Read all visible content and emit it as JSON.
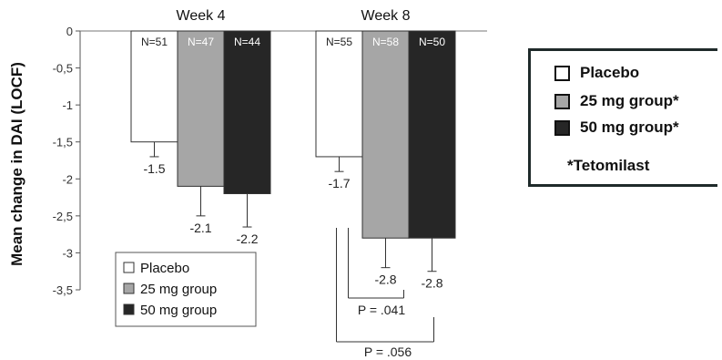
{
  "chart_data": {
    "type": "bar",
    "ylabel": "Mean change in DAI (LOCF)",
    "ylim": [
      -3.5,
      0
    ],
    "yticks": [
      "0",
      "-0,5",
      "-1",
      "-1,5",
      "-2",
      "-2,5",
      "-3",
      "-3,5"
    ],
    "ytick_values": [
      0,
      -0.5,
      -1,
      -1.5,
      -2,
      -2.5,
      -3,
      -3.5
    ],
    "groups": [
      "Week 4",
      "Week 8"
    ],
    "series": [
      {
        "name": "Placebo",
        "color": "#ffffff",
        "values": [
          -1.5,
          -1.7
        ],
        "value_labels": [
          "-1.5",
          "-1.7"
        ],
        "errors": [
          0.2,
          0.2
        ],
        "n": [
          "N=51",
          "N=55"
        ]
      },
      {
        "name": "25 mg group",
        "color": "#a6a6a6",
        "values": [
          -2.1,
          -2.8
        ],
        "value_labels": [
          "-2.1",
          "-2.8"
        ],
        "errors": [
          0.4,
          0.4
        ],
        "n": [
          "N=47",
          "N=58"
        ]
      },
      {
        "name": "50 mg group",
        "color": "#262626",
        "values": [
          -2.2,
          -2.8
        ],
        "value_labels": [
          "-2.2",
          "-2.8"
        ],
        "errors": [
          0.45,
          0.45
        ],
        "n": [
          "N=44",
          "N=50"
        ]
      }
    ],
    "annotations": [
      {
        "text": "P = .041",
        "from_series": "Placebo",
        "to_series": "25 mg group",
        "group": "Week 8"
      },
      {
        "text": "P = .056",
        "from_series": "Placebo",
        "to_series": "50 mg group",
        "group": "Week 8"
      }
    ],
    "legend": {
      "placement": "bottom-left",
      "entries": [
        "Placebo",
        "25 mg group",
        "50 mg group"
      ]
    },
    "grid": false
  },
  "side_legend": {
    "items": [
      {
        "label": "Placebo",
        "color": "#ffffff"
      },
      {
        "label": "25 mg group*",
        "color": "#a6a6a6"
      },
      {
        "label": "50 mg group*",
        "color": "#262626"
      }
    ],
    "note": "*Tetomilast"
  }
}
